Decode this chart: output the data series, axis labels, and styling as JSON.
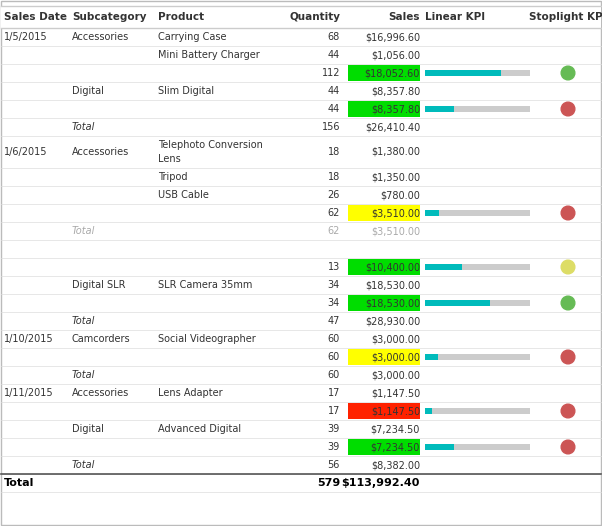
{
  "header": [
    "Sales Date",
    "Subcategory",
    "Product",
    "Quantity",
    "Sales",
    "Linear KPI",
    "Stoplight KPI"
  ],
  "rows": [
    {
      "sales_date": "1/5/2015",
      "subcategory": "Accessories",
      "product": "Carrying Case",
      "quantity": "68",
      "sales": "$16,996.60",
      "kpi_bar": null,
      "stoplight": null,
      "sales_bg": null,
      "gray": false,
      "double_height": false
    },
    {
      "sales_date": "",
      "subcategory": "",
      "product": "Mini Battery Charger",
      "quantity": "44",
      "sales": "$1,056.00",
      "kpi_bar": null,
      "stoplight": null,
      "sales_bg": null,
      "gray": false,
      "double_height": false
    },
    {
      "sales_date": "",
      "subcategory": "",
      "product": "",
      "quantity": "112",
      "sales": "$18,052.60",
      "kpi_bar": 0.72,
      "stoplight": "green",
      "sales_bg": "#00DD00",
      "gray": false,
      "double_height": false
    },
    {
      "sales_date": "",
      "subcategory": "Digital",
      "product": "Slim Digital",
      "quantity": "44",
      "sales": "$8,357.80",
      "kpi_bar": null,
      "stoplight": null,
      "sales_bg": null,
      "gray": false,
      "double_height": false
    },
    {
      "sales_date": "",
      "subcategory": "",
      "product": "",
      "quantity": "44",
      "sales": "$8,357.80",
      "kpi_bar": 0.28,
      "stoplight": "red",
      "sales_bg": "#00DD00",
      "gray": false,
      "double_height": false
    },
    {
      "sales_date": "",
      "subcategory": "Total",
      "product": "",
      "quantity": "156",
      "sales": "$26,410.40",
      "kpi_bar": null,
      "stoplight": null,
      "sales_bg": null,
      "gray": false,
      "double_height": false
    },
    {
      "sales_date": "1/6/2015",
      "subcategory": "Accessories",
      "product": "Telephoto Conversion",
      "quantity": "18",
      "sales": "$1,380.00",
      "kpi_bar": null,
      "stoplight": null,
      "sales_bg": null,
      "gray": false,
      "double_height": true,
      "product_line2": "Lens"
    },
    {
      "sales_date": "",
      "subcategory": "",
      "product": "Tripod",
      "quantity": "18",
      "sales": "$1,350.00",
      "kpi_bar": null,
      "stoplight": null,
      "sales_bg": null,
      "gray": false,
      "double_height": false
    },
    {
      "sales_date": "",
      "subcategory": "",
      "product": "USB Cable",
      "quantity": "26",
      "sales": "$780.00",
      "kpi_bar": null,
      "stoplight": null,
      "sales_bg": null,
      "gray": false,
      "double_height": false
    },
    {
      "sales_date": "",
      "subcategory": "",
      "product": "",
      "quantity": "62",
      "sales": "$3,510.00",
      "kpi_bar": 0.13,
      "stoplight": "red",
      "sales_bg": "#FFFF00",
      "gray": false,
      "double_height": false
    },
    {
      "sales_date": "",
      "subcategory": "Total",
      "product": "",
      "quantity": "62",
      "sales": "$3,510.00",
      "kpi_bar": null,
      "stoplight": null,
      "sales_bg": null,
      "gray": true,
      "double_height": false
    },
    {
      "sales_date": "",
      "subcategory": "",
      "product": "",
      "quantity": "",
      "sales": "",
      "kpi_bar": null,
      "stoplight": null,
      "sales_bg": null,
      "gray": false,
      "double_height": false
    },
    {
      "sales_date": "",
      "subcategory": "",
      "product": "",
      "quantity": "13",
      "sales": "$10,400.00",
      "kpi_bar": 0.35,
      "stoplight": "yellow",
      "sales_bg": "#00DD00",
      "gray": false,
      "double_height": false
    },
    {
      "sales_date": "",
      "subcategory": "Digital SLR",
      "product": "SLR Camera 35mm",
      "quantity": "34",
      "sales": "$18,530.00",
      "kpi_bar": null,
      "stoplight": null,
      "sales_bg": null,
      "gray": false,
      "double_height": false
    },
    {
      "sales_date": "",
      "subcategory": "",
      "product": "",
      "quantity": "34",
      "sales": "$18,530.00",
      "kpi_bar": 0.62,
      "stoplight": "green",
      "sales_bg": "#00DD00",
      "gray": false,
      "double_height": false
    },
    {
      "sales_date": "",
      "subcategory": "Total",
      "product": "",
      "quantity": "47",
      "sales": "$28,930.00",
      "kpi_bar": null,
      "stoplight": null,
      "sales_bg": null,
      "gray": false,
      "double_height": false
    },
    {
      "sales_date": "1/10/2015",
      "subcategory": "Camcorders",
      "product": "Social Videographer",
      "quantity": "60",
      "sales": "$3,000.00",
      "kpi_bar": null,
      "stoplight": null,
      "sales_bg": null,
      "gray": false,
      "double_height": false
    },
    {
      "sales_date": "",
      "subcategory": "",
      "product": "",
      "quantity": "60",
      "sales": "$3,000.00",
      "kpi_bar": 0.12,
      "stoplight": "red",
      "sales_bg": "#FFFF00",
      "gray": false,
      "double_height": false
    },
    {
      "sales_date": "",
      "subcategory": "Total",
      "product": "",
      "quantity": "60",
      "sales": "$3,000.00",
      "kpi_bar": null,
      "stoplight": null,
      "sales_bg": null,
      "gray": false,
      "double_height": false
    },
    {
      "sales_date": "1/11/2015",
      "subcategory": "Accessories",
      "product": "Lens Adapter",
      "quantity": "17",
      "sales": "$1,147.50",
      "kpi_bar": null,
      "stoplight": null,
      "sales_bg": null,
      "gray": false,
      "double_height": false
    },
    {
      "sales_date": "",
      "subcategory": "",
      "product": "",
      "quantity": "17",
      "sales": "$1,147.50",
      "kpi_bar": 0.07,
      "stoplight": "red",
      "sales_bg": "#FF2200",
      "gray": false,
      "double_height": false
    },
    {
      "sales_date": "",
      "subcategory": "Digital",
      "product": "Advanced Digital",
      "quantity": "39",
      "sales": "$7,234.50",
      "kpi_bar": null,
      "stoplight": null,
      "sales_bg": null,
      "gray": false,
      "double_height": false
    },
    {
      "sales_date": "",
      "subcategory": "",
      "product": "",
      "quantity": "39",
      "sales": "$7,234.50",
      "kpi_bar": 0.28,
      "stoplight": "red",
      "sales_bg": "#00DD00",
      "gray": false,
      "double_height": false
    },
    {
      "sales_date": "",
      "subcategory": "Total",
      "product": "",
      "quantity": "56",
      "sales": "$8,382.00",
      "kpi_bar": null,
      "stoplight": null,
      "sales_bg": null,
      "gray": false,
      "double_height": false
    }
  ],
  "footer": {
    "label": "Total",
    "quantity": "579",
    "sales": "$113,992.40"
  },
  "bar_color": "#00BBBB",
  "bar_bg_color": "#CCCCCC",
  "stoplight_green": "#66BB55",
  "stoplight_yellow": "#DDDD66",
  "stoplight_red": "#CC5555",
  "font_size": 7.0,
  "gray_text": "#AAAAAA",
  "normal_text": "#333333",
  "border_color": "#DDDDDD",
  "background": "#FFFFFF"
}
